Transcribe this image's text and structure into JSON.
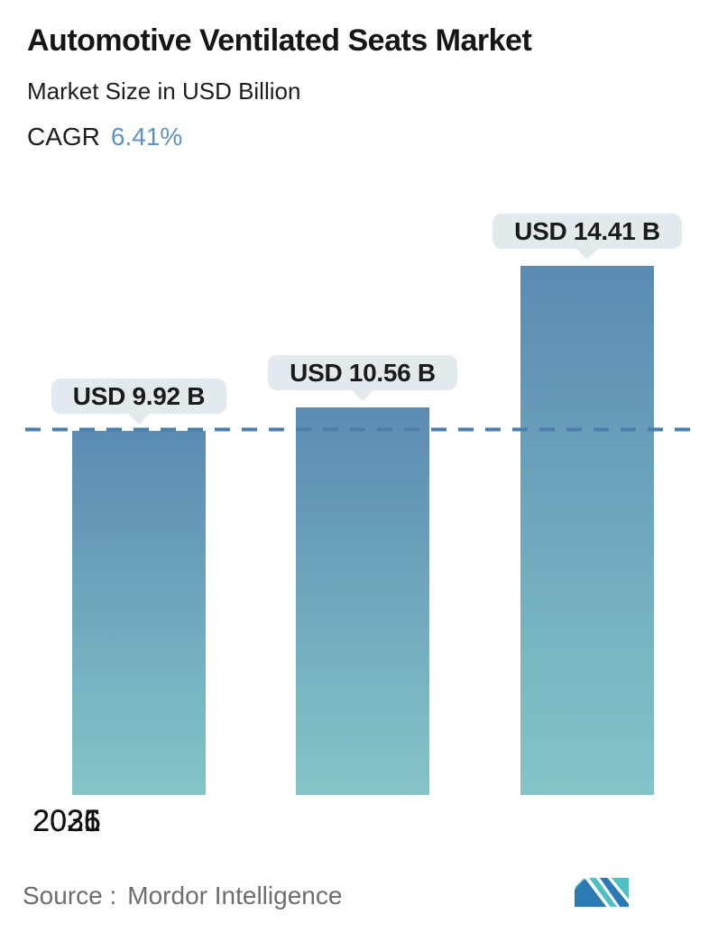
{
  "header": {
    "title": "Automotive Ventilated Seats Market",
    "subtitle": "Market Size in USD Billion",
    "cagr_label": "CAGR",
    "cagr_value": "6.41%",
    "cagr_value_color": "#5e92c0"
  },
  "chart_data": {
    "type": "bar",
    "title": "Automotive Ventilated Seats Market",
    "subtitle": "Market Size in USD Billion",
    "cagr_percent": 6.41,
    "categories": [
      "2025",
      "2026",
      "2031"
    ],
    "values": [
      9.92,
      10.56,
      14.41
    ],
    "value_labels": [
      "USD 9.92 B",
      "USD 10.56 B",
      "USD 14.41 B"
    ],
    "unit": "USD Billion",
    "ylim": [
      0,
      21.7
    ],
    "grid": "off",
    "legend": "none",
    "reference_line": {
      "value": 9.92,
      "style": "dashed",
      "color": "#4b7ea8"
    },
    "bar_color_top": "#5b8bb2",
    "bar_color_bottom": "#84c5c8",
    "bubble_bg": "#e3eaee"
  },
  "footer": {
    "source_prefix": "Source :",
    "source_name": "Mordor Intelligence",
    "logo": "mordor-intelligence-logo",
    "logo_blue": "#2b7ab3",
    "logo_teal": "#4fc0c1"
  }
}
